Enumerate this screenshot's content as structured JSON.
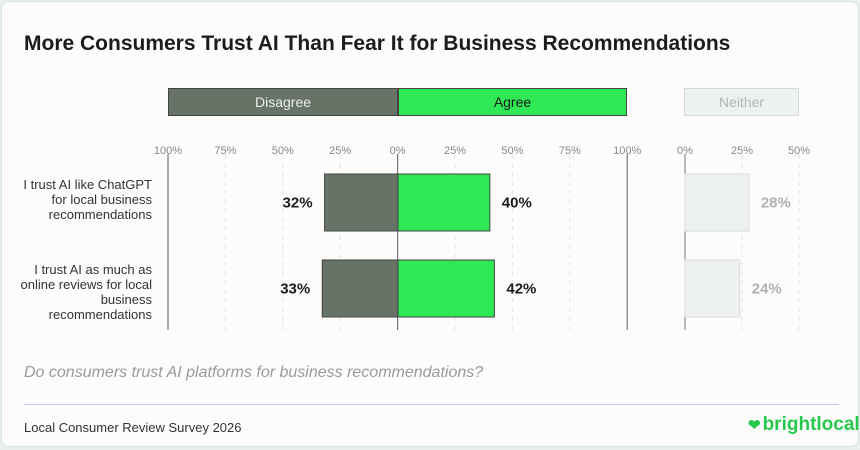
{
  "title": "More Consumers Trust AI Than Fear It for Business Recommendations",
  "question": "Do consumers trust AI platforms for business recommendations?",
  "source": "Local Consumer Review Survey 2026",
  "logo": "brightlocal",
  "colors": {
    "disagree": "#667366",
    "agree": "#2ee854",
    "neither": "#eef2ef",
    "neither_text": "#b0b0b0"
  },
  "chart_data": {
    "type": "bar",
    "orientation": "horizontal-diverging",
    "categories": [
      "I trust AI like ChatGPT for local business recommendations",
      "I trust AI as much as online reviews for local business recommendations"
    ],
    "series": [
      {
        "name": "Disagree",
        "values": [
          32,
          33
        ]
      },
      {
        "name": "Agree",
        "values": [
          40,
          42
        ]
      },
      {
        "name": "Neither",
        "values": [
          28,
          24
        ]
      }
    ],
    "diverging_ticks": [
      "100%",
      "75%",
      "50%",
      "25%",
      "0%",
      "25%",
      "50%",
      "75%",
      "100%"
    ],
    "neither_ticks": [
      "0%",
      "25%",
      "50%"
    ],
    "xlim": [
      -100,
      100
    ],
    "neither_xlim": [
      0,
      50
    ],
    "legend_placement": "top",
    "grid": true
  }
}
